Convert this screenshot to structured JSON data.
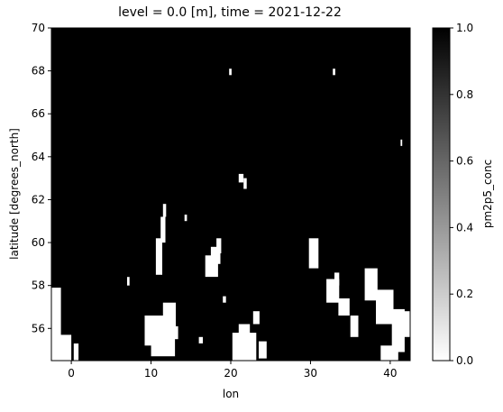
{
  "chart_data": {
    "type": "heatmap",
    "title": "level = 0.0 [m], time = 2021-12-22",
    "xlabel": "lon",
    "ylabel": "latitude [degrees_north]",
    "xlim": [
      -2.5,
      42.5
    ],
    "ylim": [
      54.5,
      70
    ],
    "xticks": [
      0,
      10,
      20,
      30,
      40
    ],
    "yticks": [
      56,
      58,
      60,
      62,
      64,
      66,
      68,
      70
    ],
    "colorbar": {
      "label": "pm2p5_conc",
      "range": [
        0.0,
        1.0
      ],
      "ticks": [
        "0.0",
        "0.2",
        "0.4",
        "0.6",
        "0.8",
        "1.0"
      ],
      "colormap": "Greys"
    },
    "low_value_regions": [
      {
        "lon": -2.5,
        "lat": 54.5,
        "w": 1.2,
        "h": 3.4
      },
      {
        "lon": -1.5,
        "lat": 54.5,
        "w": 1.5,
        "h": 1.2
      },
      {
        "lon": 0.3,
        "lat": 54.5,
        "w": 0.6,
        "h": 0.8
      },
      {
        "lon": 9.2,
        "lat": 55.2,
        "w": 2.5,
        "h": 1.4
      },
      {
        "lon": 10.0,
        "lat": 54.7,
        "w": 3.0,
        "h": 1.4
      },
      {
        "lon": 11.5,
        "lat": 56.0,
        "w": 1.6,
        "h": 1.2
      },
      {
        "lon": 12.8,
        "lat": 55.5,
        "w": 0.6,
        "h": 0.6
      },
      {
        "lon": 10.6,
        "lat": 58.5,
        "w": 0.8,
        "h": 1.7
      },
      {
        "lon": 11.2,
        "lat": 60.0,
        "w": 0.6,
        "h": 1.2
      },
      {
        "lon": 11.5,
        "lat": 61.2,
        "w": 0.4,
        "h": 0.6
      },
      {
        "lon": 16.8,
        "lat": 58.4,
        "w": 1.6,
        "h": 1.0
      },
      {
        "lon": 17.5,
        "lat": 59.0,
        "w": 1.2,
        "h": 0.8
      },
      {
        "lon": 18.2,
        "lat": 59.5,
        "w": 0.6,
        "h": 0.7
      },
      {
        "lon": 20.2,
        "lat": 54.5,
        "w": 3.0,
        "h": 1.3
      },
      {
        "lon": 21.0,
        "lat": 55.5,
        "w": 1.4,
        "h": 0.7
      },
      {
        "lon": 22.8,
        "lat": 56.2,
        "w": 0.8,
        "h": 0.6
      },
      {
        "lon": 23.5,
        "lat": 54.6,
        "w": 1.0,
        "h": 0.8
      },
      {
        "lon": 21.0,
        "lat": 62.8,
        "w": 0.6,
        "h": 0.4
      },
      {
        "lon": 21.6,
        "lat": 62.5,
        "w": 0.4,
        "h": 0.5
      },
      {
        "lon": 29.8,
        "lat": 58.8,
        "w": 1.2,
        "h": 1.4
      },
      {
        "lon": 32.0,
        "lat": 57.2,
        "w": 1.6,
        "h": 1.1
      },
      {
        "lon": 33.5,
        "lat": 56.6,
        "w": 1.4,
        "h": 0.8
      },
      {
        "lon": 33.0,
        "lat": 58.0,
        "w": 0.6,
        "h": 0.6
      },
      {
        "lon": 35.0,
        "lat": 55.6,
        "w": 1.0,
        "h": 1.0
      },
      {
        "lon": 36.8,
        "lat": 57.3,
        "w": 1.6,
        "h": 1.5
      },
      {
        "lon": 38.2,
        "lat": 56.2,
        "w": 2.2,
        "h": 1.6
      },
      {
        "lon": 40.2,
        "lat": 54.9,
        "w": 1.6,
        "h": 2.0
      },
      {
        "lon": 41.5,
        "lat": 55.6,
        "w": 1.0,
        "h": 1.2
      },
      {
        "lon": 38.8,
        "lat": 54.5,
        "w": 2.2,
        "h": 0.7
      },
      {
        "lon": 19.8,
        "lat": 67.8,
        "w": 0.3,
        "h": 0.3
      },
      {
        "lon": 32.8,
        "lat": 67.8,
        "w": 0.3,
        "h": 0.3
      },
      {
        "lon": 41.3,
        "lat": 64.5,
        "w": 0.2,
        "h": 0.3
      },
      {
        "lon": 7.0,
        "lat": 58.0,
        "w": 0.3,
        "h": 0.4
      },
      {
        "lon": 14.2,
        "lat": 61.0,
        "w": 0.3,
        "h": 0.3
      },
      {
        "lon": 19.0,
        "lat": 57.2,
        "w": 0.4,
        "h": 0.3
      },
      {
        "lon": 16.0,
        "lat": 55.3,
        "w": 0.5,
        "h": 0.3
      }
    ]
  }
}
